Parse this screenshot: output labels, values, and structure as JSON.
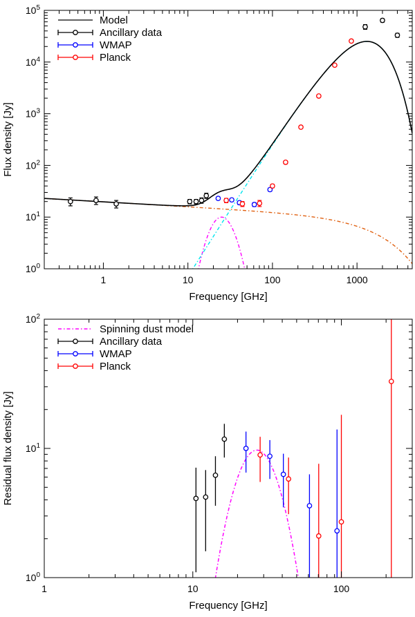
{
  "chart_data": [
    {
      "type": "scatter",
      "xscale": "log",
      "yscale": "log",
      "xlim": [
        0.2,
        4500
      ],
      "ylim": [
        1,
        100000
      ],
      "xlabel": "Frequency [GHz]",
      "ylabel": "Flux density [Jy]",
      "xticks": [
        {
          "v": 1,
          "t": "1"
        },
        {
          "v": 10,
          "t": "10"
        },
        {
          "v": 100,
          "t": "100"
        },
        {
          "v": 1000,
          "t": "1000"
        }
      ],
      "yticks": [
        {
          "v": 1,
          "b": "10",
          "e": "0"
        },
        {
          "v": 10,
          "b": "10",
          "e": "1"
        },
        {
          "v": 100,
          "b": "10",
          "e": "2"
        },
        {
          "v": 1000,
          "b": "10",
          "e": "3"
        },
        {
          "v": 10000,
          "b": "10",
          "e": "4"
        },
        {
          "v": 100000,
          "b": "10",
          "e": "5"
        }
      ],
      "legend_position": "top-left",
      "legend": [
        {
          "label": "Model",
          "kind": "line",
          "color": "#000000"
        },
        {
          "label": "Ancillary data",
          "kind": "point",
          "color": "#000000"
        },
        {
          "label": "WMAP",
          "kind": "point",
          "color": "#0000ff"
        },
        {
          "label": "Planck",
          "kind": "point",
          "color": "#ff0000"
        }
      ],
      "model_components": [
        {
          "name": "total",
          "color": "#000000",
          "dash": "",
          "width": 1.6
        },
        {
          "name": "free-free",
          "color": "#e06010",
          "dash": "5,3,1.5,3",
          "width": 1.4
        },
        {
          "name": "spinning dust",
          "color": "#ff00ff",
          "dash": "5,3,1.5,3",
          "width": 1.4
        },
        {
          "name": "thermal dust",
          "color": "#00e5ee",
          "dash": "5,3,1.5,3",
          "width": 1.4
        }
      ],
      "series": [
        {
          "name": "Ancillary data",
          "color": "#000000",
          "points": [
            [
              0.408,
              20,
              3.5
            ],
            [
              0.82,
              21,
              3.5
            ],
            [
              1.42,
              18,
              3
            ],
            [
              10.5,
              20,
              2
            ],
            [
              12.5,
              20,
              2
            ],
            [
              14.5,
              21,
              2.5
            ],
            [
              16.5,
              26,
              3
            ],
            [
              1250,
              48000,
              5000
            ],
            [
              2000,
              64000,
              5000
            ],
            [
              3000,
              33000,
              3000
            ]
          ]
        },
        {
          "name": "WMAP",
          "color": "#0000ff",
          "points": [
            [
              22.8,
              23,
              1.5
            ],
            [
              33,
              21.5,
              1.5
            ],
            [
              40.7,
              19,
              1.5
            ],
            [
              61,
              17.5,
              1.5
            ],
            [
              93.5,
              34,
              2.5
            ]
          ]
        },
        {
          "name": "Planck",
          "color": "#ff0000",
          "points": [
            [
              28.4,
              21,
              2
            ],
            [
              44.1,
              18,
              2
            ],
            [
              70.4,
              18.5,
              2.5
            ],
            [
              100,
              40,
              3
            ],
            [
              143,
              115,
              8
            ],
            [
              217,
              550,
              30
            ],
            [
              353,
              2200,
              120
            ],
            [
              545,
              8700,
              450
            ],
            [
              857,
              25500,
              1300
            ]
          ]
        }
      ]
    },
    {
      "type": "scatter",
      "xscale": "log",
      "yscale": "log",
      "xlim": [
        1,
        300
      ],
      "ylim": [
        1,
        100
      ],
      "xlabel": "Frequency [GHz]",
      "ylabel": "Residual flux density [Jy]",
      "xticks": [
        {
          "v": 1,
          "t": "1"
        },
        {
          "v": 10,
          "t": "10"
        },
        {
          "v": 100,
          "t": "100"
        }
      ],
      "yticks": [
        {
          "v": 1,
          "b": "10",
          "e": "0"
        },
        {
          "v": 10,
          "b": "10",
          "e": "1"
        },
        {
          "v": 100,
          "b": "10",
          "e": "2"
        }
      ],
      "legend_position": "top-left",
      "legend": [
        {
          "label": "Spinning dust model",
          "kind": "dashline",
          "color": "#ff00ff"
        },
        {
          "label": "Ancillary data",
          "kind": "point",
          "color": "#000000"
        },
        {
          "label": "WMAP",
          "kind": "point",
          "color": "#0000ff"
        },
        {
          "label": "Planck",
          "kind": "point",
          "color": "#ff0000"
        }
      ],
      "series": [
        {
          "name": "Ancillary data",
          "color": "#000000",
          "points": [
            [
              10.5,
              4.1,
              1.1,
              7.1
            ],
            [
              12.2,
              4.2,
              1.6,
              6.8
            ],
            [
              14.2,
              6.2,
              3.6,
              8.7
            ],
            [
              16.3,
              11.8,
              8.5,
              15.5
            ]
          ]
        },
        {
          "name": "WMAP",
          "color": "#0000ff",
          "points": [
            [
              22.8,
              10,
              6.5,
              13.5
            ],
            [
              33,
              8.7,
              5.8,
              11.6
            ],
            [
              40.7,
              6.3,
              3.5,
              9.1
            ],
            [
              61,
              3.6,
              1,
              6.3
            ],
            [
              93.5,
              2.3,
              1,
              14
            ]
          ]
        },
        {
          "name": "Planck",
          "color": "#ff0000",
          "points": [
            [
              28.4,
              8.9,
              5.5,
              12.3
            ],
            [
              44.1,
              5.8,
              3.1,
              8.5
            ],
            [
              70.4,
              2.1,
              1,
              7.6
            ],
            [
              100,
              2.7,
              1,
              18.2
            ],
            [
              217,
              33,
              1,
              100
            ]
          ]
        }
      ],
      "model_curve": {
        "peak_freq_ghz": 27,
        "peak_flux_jy": 9.7,
        "color": "#ff00ff"
      }
    }
  ]
}
